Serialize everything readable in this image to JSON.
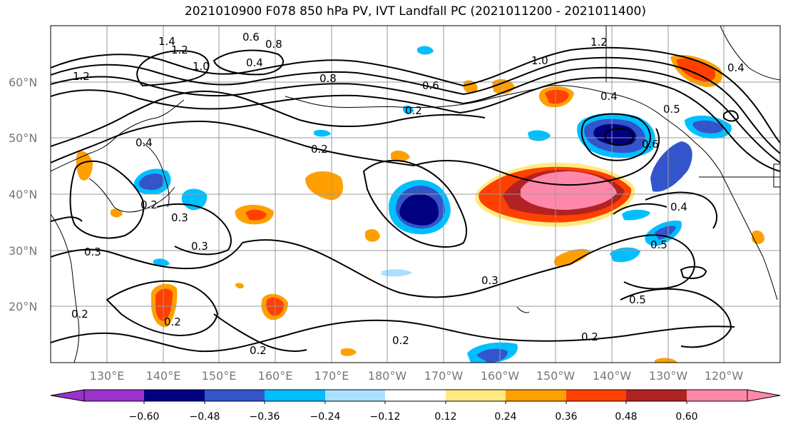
{
  "title": "2021010900 F078 850 hPa PV, IVT Landfall PC (2021011200 - 2021011400)",
  "lat_labels": [
    "60°N",
    "50°N",
    "40°N",
    "30°N",
    "20°N"
  ],
  "lon_labels": [
    "130°E",
    "140°E",
    "150°E",
    "160°E",
    "170°E",
    "180°W",
    "170°W",
    "160°W",
    "150°W",
    "140°W",
    "130°W",
    "120°W"
  ],
  "colorbar": {
    "tick_labels": [
      "−0.60",
      "−0.48",
      "−0.36",
      "−0.24",
      "−0.12",
      "0.12",
      "0.24",
      "0.36",
      "0.48",
      "0.60"
    ],
    "colors": [
      "#9933cc",
      "#000080",
      "#3355cc",
      "#00bfff",
      "#aadfff",
      "#ffffff",
      "#ffea80",
      "#ffa000",
      "#ff4000",
      "#b22222",
      "#ff88aa",
      "#ff88aa"
    ]
  },
  "contour_labels": [
    "1.4",
    "1.2",
    "1.0",
    "0.6",
    "0.8",
    "0.4",
    "1.2",
    "0.8",
    "0.6",
    "1.2",
    "1.0",
    "0.4",
    "0.2",
    "0.4",
    "0.2",
    "0.5",
    "0.6",
    "0.4",
    "0.2",
    "0.3",
    "0.3",
    "0.3",
    "0.2",
    "0.2",
    "0.2",
    "0.3",
    "0.2",
    "0.5",
    "0.5",
    "0.2",
    "0.4"
  ]
}
